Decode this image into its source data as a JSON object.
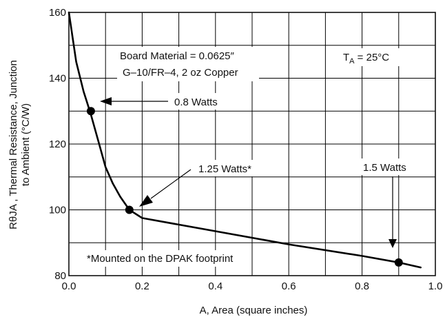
{
  "chart_data": {
    "type": "line",
    "xlabel": "A, Area (square inches)",
    "ylabel_line1": "RθJA , Thermal Resistance, Junction",
    "ylabel_line2": "to Ambient (°C/W)",
    "xlim": [
      0,
      1.0
    ],
    "ylim": [
      80,
      160
    ],
    "x_ticks": [
      0.0,
      0.2,
      0.4,
      0.6,
      0.8,
      1.0
    ],
    "x_tick_labels": [
      "0.0",
      "0.2",
      "0.4",
      "0.6",
      "0.8",
      "1.0"
    ],
    "y_ticks": [
      80,
      100,
      120,
      140,
      160
    ],
    "y_tick_labels": [
      "80",
      "100",
      "120",
      "140",
      "160"
    ],
    "x_minor_grid": [
      0.1,
      0.3,
      0.5,
      0.7,
      0.9
    ],
    "y_minor_grid": [
      90,
      110,
      130,
      150
    ],
    "grid": true,
    "series": [
      {
        "x": [
          0.0,
          0.02,
          0.04,
          0.06,
          0.08,
          0.1,
          0.12,
          0.14,
          0.165,
          0.2,
          0.4,
          0.6,
          0.8,
          0.9,
          0.96
        ],
        "y": [
          160,
          145,
          136,
          129,
          121,
          113,
          108,
          104,
          100,
          97.5,
          93.5,
          89.5,
          86,
          84,
          82.5
        ]
      }
    ],
    "markers": [
      {
        "x": 0.06,
        "y": 130,
        "label": "0.8 Watts"
      },
      {
        "x": 0.165,
        "y": 100,
        "label": "1.25 Watts*"
      },
      {
        "x": 0.9,
        "y": 84,
        "label": "1.5 Watts"
      }
    ],
    "annotations": {
      "board_line1": "Board Material = 0.0625″",
      "board_line2": "G–10/FR–4, 2 oz Copper",
      "ta_main": "T",
      "ta_sub": "A",
      "ta_rest": " = 25°C",
      "footnote": "*Mounted on the DPAK footprint"
    }
  }
}
